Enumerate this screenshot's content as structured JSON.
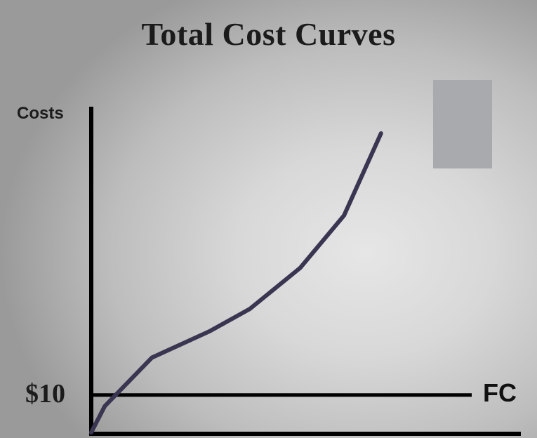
{
  "chart_data": {
    "type": "line",
    "title": "Total Cost Curves",
    "ylabel": "Costs",
    "xlabel": "",
    "ylim": [
      0,
      80
    ],
    "xlim": [
      0,
      10
    ],
    "horizontal_line": {
      "name": "FC",
      "value": 10,
      "tick_label": "$10"
    },
    "series": [
      {
        "x": [
          0,
          0.4,
          1.8,
          3.5,
          4.7,
          6.2,
          7.5,
          8.6
        ],
        "y": [
          0,
          7,
          20,
          27,
          33,
          44,
          58,
          80
        ]
      }
    ],
    "grid": false
  },
  "colors": {
    "curve": "#3a3550",
    "axes": "#000000",
    "fc_line": "#000000",
    "overlay_box": "#a9aaad"
  }
}
